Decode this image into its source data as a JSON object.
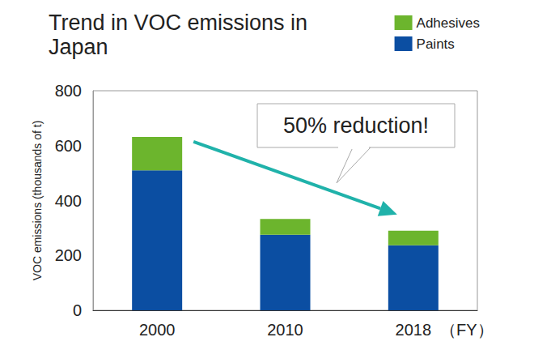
{
  "chart_data": {
    "type": "bar",
    "title": "Trend in VOC emissions in Japan",
    "y_label": "VOC emissions (thousands of t)",
    "x_label": "（FY）",
    "annotation": "50% reduction!",
    "categories": [
      "2000",
      "2010",
      "2018"
    ],
    "series": [
      {
        "name": "Paints",
        "color": "#0b4ea2",
        "values": [
          510,
          275,
          237
        ]
      },
      {
        "name": "Adhesives",
        "color": "#6cb52d",
        "values": [
          122,
          58,
          53
        ]
      }
    ],
    "stacked": true,
    "ylim": [
      0,
      800
    ],
    "yticks": [
      0,
      200,
      400,
      600,
      800
    ],
    "grid": false,
    "legend": "top-right"
  }
}
